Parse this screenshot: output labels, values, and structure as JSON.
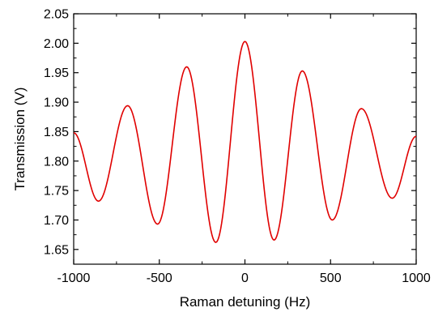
{
  "chart_data": {
    "type": "line",
    "title": "",
    "xlabel": "Raman detuning (Hz)",
    "ylabel": "Transmission (V)",
    "xlim": [
      -1000,
      1000
    ],
    "ylim": [
      1.625,
      2.05
    ],
    "x_ticks": [
      -1000,
      -500,
      0,
      500,
      1000
    ],
    "x_tick_labels": [
      "-1000",
      "-500",
      "0",
      "500",
      "1000"
    ],
    "y_ticks": [
      1.65,
      1.7,
      1.75,
      1.8,
      1.85,
      1.9,
      1.95,
      2.0,
      2.05
    ],
    "y_tick_labels": [
      "1.65",
      "1.70",
      "1.75",
      "1.80",
      "1.85",
      "1.90",
      "1.95",
      "2.00",
      "2.05"
    ],
    "grid": false,
    "legend": "none",
    "series": [
      {
        "color": "#e00000",
        "x": [
          -1000,
          -855,
          -685,
          -510,
          -340,
          -170,
          0,
          170,
          335,
          510,
          680,
          860,
          1000
        ],
        "y": [
          1.848,
          1.732,
          1.894,
          1.693,
          1.96,
          1.662,
          2.003,
          1.666,
          1.953,
          1.7,
          1.889,
          1.737,
          1.842
        ]
      }
    ]
  }
}
